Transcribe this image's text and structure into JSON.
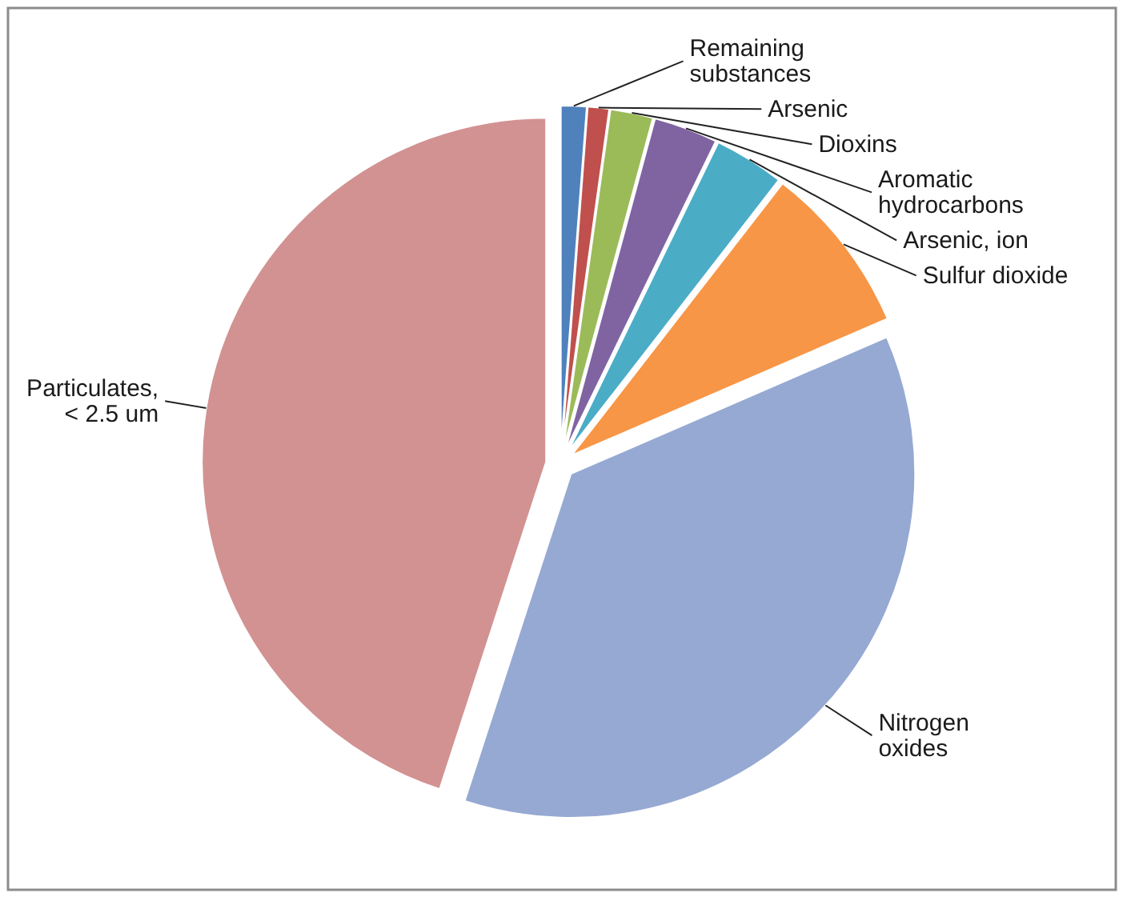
{
  "chart_data": {
    "type": "pie",
    "categories": [
      "Remaining substances",
      "Arsenic",
      "Dioxins",
      "Aromatic hydrocarbons",
      "Arsenic, ion",
      "Sulfur dioxide",
      "Nitrogen oxides",
      "Particulates, < 2.5 um"
    ],
    "values": [
      1.2,
      1.0,
      2.0,
      3.0,
      3.3,
      8.0,
      36.5,
      45.0
    ],
    "colors": [
      "#4f81bd",
      "#c0504d",
      "#9bbb59",
      "#8064a2",
      "#4bacc6",
      "#f79646",
      "#95a9d2",
      "#d29292"
    ]
  }
}
